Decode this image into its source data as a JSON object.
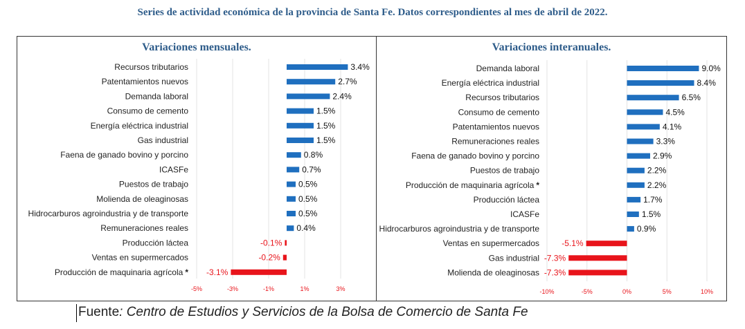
{
  "title": "Series de actividad económica de la provincia de Santa Fe. Datos correspondientes al mes de abril de 2022.",
  "source": {
    "label": "Fuente",
    "text": ": Centro de Estudios y Servicios de la Bolsa de Comercio de Santa Fe"
  },
  "colors": {
    "positive": "#1F6FBF",
    "negative": "#E8141B",
    "title": "#2E5C8A",
    "grid": "#E3E3E3"
  },
  "chart_data": [
    {
      "type": "bar",
      "orientation": "horizontal",
      "title": "Variaciones mensuales.",
      "categories": [
        "Recursos tributarios",
        "Patentamientos nuevos",
        "Demanda laboral",
        "Consumo de cemento",
        "Energía eléctrica industrial",
        "Gas industrial",
        "Faena de ganado bovino y porcino",
        "ICASFe",
        "Puestos de trabajo",
        "Molienda de oleaginosas",
        "Hidrocarburos agroindustria y de transporte",
        "Remuneraciones reales",
        "Producción láctea",
        "Ventas en supermercados",
        "Producción de maquinaria agrícola"
      ],
      "markers": [
        "",
        "",
        "",
        "",
        "",
        "",
        "",
        "",
        "",
        "",
        "",
        "",
        "",
        "",
        "*"
      ],
      "values": [
        3.4,
        2.7,
        2.4,
        1.5,
        1.5,
        1.5,
        0.8,
        0.7,
        0.5,
        0.5,
        0.5,
        0.4,
        -0.1,
        -0.2,
        -3.1
      ],
      "value_labels": [
        "3.4%",
        "2.7%",
        "2.4%",
        "1.5%",
        "1.5%",
        "1.5%",
        "0.8%",
        "0.7%",
        "0.5%",
        "0.5%",
        "0.5%",
        "0.4%",
        "-0.1%",
        "-0.2%",
        "-3.1%"
      ],
      "xlim": [
        -5,
        3
      ],
      "ticks": [
        -5,
        -3,
        -1,
        1,
        3
      ],
      "tick_labels": [
        "-5%",
        "-3%",
        "-1%",
        "1%",
        "3%"
      ],
      "grid": true
    },
    {
      "type": "bar",
      "orientation": "horizontal",
      "title": "Variaciones interanuales.",
      "categories": [
        "Demanda laboral",
        "Energía eléctrica industrial",
        "Recursos tributarios",
        "Consumo de cemento",
        "Patentamientos nuevos",
        "Remuneraciones reales",
        "Faena de ganado bovino y porcino",
        "Puestos de trabajo",
        "Producción de maquinaria agrícola",
        "Producción láctea",
        "ICASFe",
        "Hidrocarburos agroindustria y de transporte",
        "Ventas en supermercados",
        "Gas industrial",
        "Molienda de oleaginosas"
      ],
      "markers": [
        "",
        "",
        "",
        "",
        "",
        "",
        "",
        "",
        "*",
        "",
        "",
        "",
        "",
        "",
        ""
      ],
      "values": [
        9.0,
        8.4,
        6.5,
        4.5,
        4.1,
        3.3,
        2.9,
        2.2,
        2.2,
        1.7,
        1.5,
        0.9,
        -5.1,
        -7.3,
        -7.3
      ],
      "value_labels": [
        "9.0%",
        "8.4%",
        "6.5%",
        "4.5%",
        "4.1%",
        "3.3%",
        "2.9%",
        "2.2%",
        "2.2%",
        "1.7%",
        "1.5%",
        "0.9%",
        "-5.1%",
        "-7.3%",
        "-7.3%"
      ],
      "xlim": [
        -10,
        10
      ],
      "ticks": [
        -10,
        -5,
        0,
        5,
        10
      ],
      "tick_labels": [
        "-10%",
        "-5%",
        "0%",
        "5%",
        "10%"
      ],
      "grid": true
    }
  ]
}
